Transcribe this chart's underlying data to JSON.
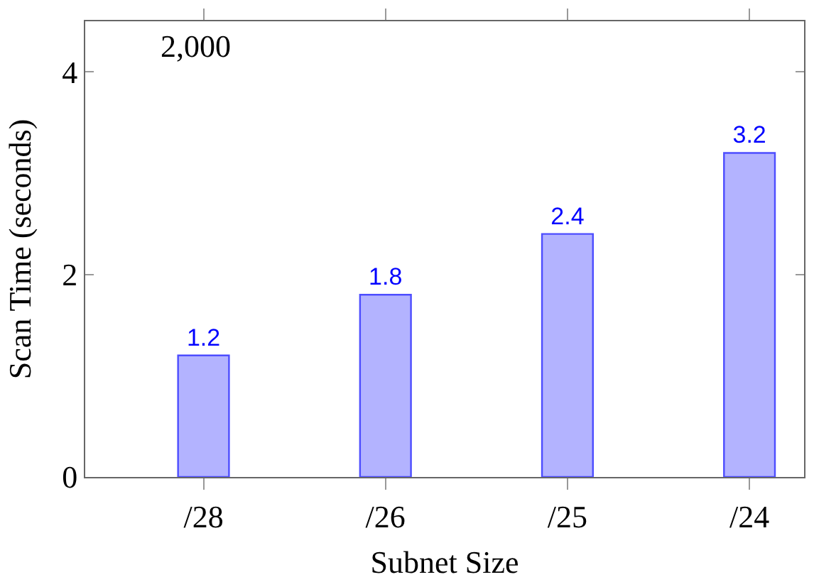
{
  "chart_data": {
    "type": "bar",
    "xlabel": "Subnet Size",
    "ylabel": "Scan Time (seconds)",
    "categories": [
      "/28",
      "/26",
      "/25",
      "/24"
    ],
    "values": [
      1.2,
      1.8,
      2.4,
      3.2
    ],
    "color": "#b3b3ff",
    "data_labels": true,
    "ylim": [
      0,
      4.5
    ],
    "yticks": [
      0,
      2,
      4
    ],
    "annotations": [
      "2,000"
    ]
  }
}
